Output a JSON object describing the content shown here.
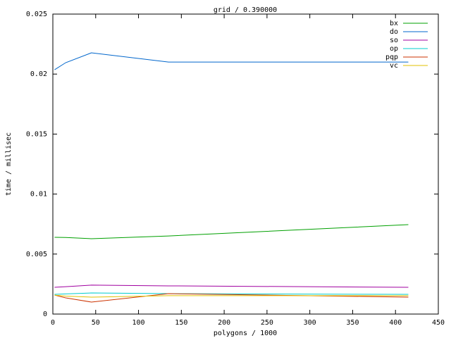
{
  "chart_data": {
    "type": "line",
    "title": "grid / 0.390000",
    "x_label": "polygons / 1000",
    "y_label": "time / millisec",
    "x": [
      2,
      15,
      45,
      135,
      415
    ],
    "series": [
      {
        "name": "bx",
        "color": "#00a000",
        "values": [
          0.0064,
          0.00638,
          0.00628,
          0.00651,
          0.00745
        ]
      },
      {
        "name": "do",
        "color": "#0066cc",
        "values": [
          0.02036,
          0.02095,
          0.02177,
          0.021,
          0.021
        ]
      },
      {
        "name": "so",
        "color": "#a000a0",
        "values": [
          0.00223,
          0.00228,
          0.00241,
          0.00235,
          0.00223
        ]
      },
      {
        "name": "op",
        "color": "#00cccc",
        "values": [
          0.00164,
          0.00168,
          0.00176,
          0.0017,
          0.00164
        ]
      },
      {
        "name": "pqp",
        "color": "#cc3300",
        "values": [
          0.00158,
          0.00135,
          0.001,
          0.0017,
          0.00141
        ]
      },
      {
        "name": "vc",
        "color": "#e0c000",
        "values": [
          0.00158,
          0.0015,
          0.00141,
          0.00153,
          0.00153
        ]
      }
    ],
    "xlim": [
      0,
      450
    ],
    "xticks": [
      0,
      50,
      100,
      150,
      200,
      250,
      300,
      350,
      400,
      450
    ],
    "ylim": [
      0,
      0.025
    ],
    "yticks": [
      0,
      0.005,
      0.01,
      0.015,
      0.02,
      0.025
    ],
    "legend": "upper right"
  }
}
